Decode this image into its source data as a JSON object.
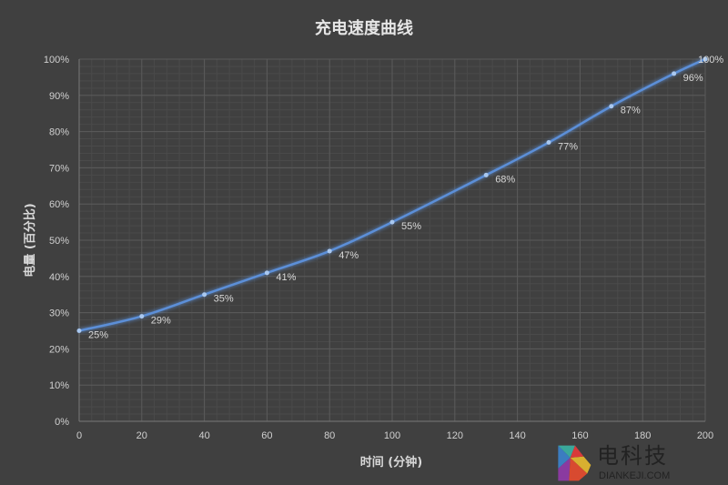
{
  "chart_data": {
    "type": "line",
    "title": "充电速度曲线",
    "xlabel": "时间 (分钟)",
    "ylabel": "电量 (百分比)",
    "x": [
      0,
      20,
      40,
      60,
      80,
      100,
      130,
      150,
      170,
      190,
      200
    ],
    "values": [
      25,
      29,
      35,
      41,
      47,
      55,
      68,
      77,
      87,
      96,
      100
    ],
    "data_labels": [
      "25%",
      "29%",
      "35%",
      "41%",
      "47%",
      "55%",
      "68%",
      "77%",
      "87%",
      "96%",
      "100%"
    ],
    "xlim": [
      0,
      200
    ],
    "ylim": [
      0,
      100
    ],
    "xticks": [
      "0",
      "20",
      "40",
      "60",
      "80",
      "100",
      "120",
      "140",
      "160",
      "180",
      "200"
    ],
    "yticks": [
      "0%",
      "10%",
      "20%",
      "30%",
      "40%",
      "50%",
      "60%",
      "70%",
      "80%",
      "90%",
      "100%"
    ],
    "grid": true,
    "smooth": true,
    "colors": {
      "line": "#5b8fd8",
      "background": "#404040",
      "grid": "#555555"
    }
  },
  "watermark": {
    "brand": "电科技",
    "site": "DIANKEJI.COM"
  }
}
